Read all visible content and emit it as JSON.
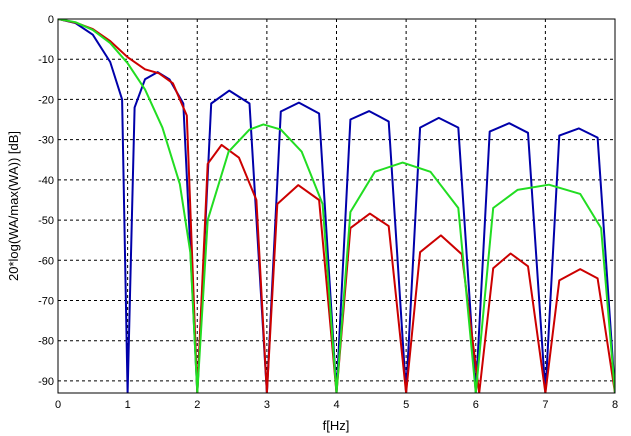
{
  "chart_data": {
    "type": "line",
    "title": "",
    "xlabel": "f[Hz]",
    "ylabel": "20*log(WA/max(WA)) [dB]",
    "xlim": [
      0,
      8
    ],
    "ylim": [
      -93,
      0
    ],
    "xticks": [
      0,
      1,
      2,
      3,
      4,
      5,
      6,
      7,
      8
    ],
    "xtick_labels": [
      "0",
      "1",
      "2",
      "3",
      "4",
      "5",
      "6",
      "7",
      "8"
    ],
    "yticks": [
      0,
      -10,
      -20,
      -30,
      -40,
      -50,
      -60,
      -70,
      -80,
      -90
    ],
    "ytick_labels": [
      "0",
      "-10",
      "-20",
      "-30",
      "-40",
      "-50",
      "-60",
      "-70",
      "-80",
      "-90"
    ],
    "grid": true,
    "grid_style": "dashed",
    "series": [
      {
        "color": "#0000aa",
        "nulls": [
          1,
          2,
          3,
          4,
          5,
          6,
          7,
          8
        ],
        "points": [
          [
            0,
            0
          ],
          [
            0.25,
            -1
          ],
          [
            0.5,
            -3.9
          ],
          [
            0.75,
            -10.7
          ],
          [
            0.92,
            -20
          ],
          [
            1.0,
            -93
          ],
          [
            1.1,
            -22
          ],
          [
            1.25,
            -15
          ],
          [
            1.43,
            -13.2
          ],
          [
            1.6,
            -15
          ],
          [
            1.8,
            -21
          ],
          [
            2.0,
            -93
          ],
          [
            2.2,
            -21
          ],
          [
            2.46,
            -17.8
          ],
          [
            2.75,
            -21
          ],
          [
            3.0,
            -93
          ],
          [
            3.2,
            -23
          ],
          [
            3.46,
            -20.8
          ],
          [
            3.75,
            -23.5
          ],
          [
            4.0,
            -93
          ],
          [
            4.2,
            -25
          ],
          [
            4.47,
            -22.9
          ],
          [
            4.75,
            -25.5
          ],
          [
            5.0,
            -93
          ],
          [
            5.2,
            -27
          ],
          [
            5.47,
            -24.6
          ],
          [
            5.75,
            -27
          ],
          [
            6.0,
            -93
          ],
          [
            6.2,
            -28
          ],
          [
            6.48,
            -25.9
          ],
          [
            6.75,
            -28.3
          ],
          [
            7.0,
            -93
          ],
          [
            7.2,
            -29
          ],
          [
            7.48,
            -27.2
          ],
          [
            7.75,
            -29.5
          ],
          [
            8.0,
            -93
          ]
        ]
      },
      {
        "color": "#cc0000",
        "nulls": [
          2,
          3,
          4,
          5,
          6.05,
          7,
          8
        ],
        "points": [
          [
            0,
            0
          ],
          [
            0.25,
            -0.9
          ],
          [
            0.5,
            -2.5
          ],
          [
            0.75,
            -5.5
          ],
          [
            1.0,
            -9.5
          ],
          [
            1.25,
            -12.5
          ],
          [
            1.45,
            -13.5
          ],
          [
            1.65,
            -16
          ],
          [
            1.85,
            -24
          ],
          [
            2.0,
            -93
          ],
          [
            2.15,
            -36
          ],
          [
            2.35,
            -31.3
          ],
          [
            2.6,
            -34.5
          ],
          [
            2.85,
            -45
          ],
          [
            3.0,
            -93
          ],
          [
            3.15,
            -46
          ],
          [
            3.45,
            -41.3
          ],
          [
            3.75,
            -45
          ],
          [
            4.0,
            -93
          ],
          [
            4.2,
            -52
          ],
          [
            4.48,
            -48.4
          ],
          [
            4.75,
            -51.5
          ],
          [
            5.0,
            -93
          ],
          [
            5.2,
            -58
          ],
          [
            5.5,
            -53.8
          ],
          [
            5.8,
            -58.5
          ],
          [
            6.05,
            -93
          ],
          [
            6.25,
            -62
          ],
          [
            6.5,
            -58.3
          ],
          [
            6.75,
            -61.5
          ],
          [
            7.0,
            -93
          ],
          [
            7.2,
            -65
          ],
          [
            7.5,
            -62.2
          ],
          [
            7.75,
            -64.5
          ],
          [
            8.0,
            -93
          ]
        ]
      },
      {
        "color": "#22dd22",
        "nulls": [
          2,
          4,
          6,
          8
        ],
        "points": [
          [
            0,
            0
          ],
          [
            0.25,
            -0.8
          ],
          [
            0.5,
            -2.7
          ],
          [
            0.75,
            -6
          ],
          [
            1.0,
            -11
          ],
          [
            1.25,
            -17.5
          ],
          [
            1.5,
            -27
          ],
          [
            1.75,
            -41
          ],
          [
            1.9,
            -58
          ],
          [
            2.0,
            -93
          ],
          [
            2.15,
            -50
          ],
          [
            2.45,
            -33
          ],
          [
            2.75,
            -27.5
          ],
          [
            2.95,
            -26.2
          ],
          [
            3.2,
            -27.5
          ],
          [
            3.5,
            -33
          ],
          [
            3.8,
            -46
          ],
          [
            4.0,
            -93
          ],
          [
            4.2,
            -48
          ],
          [
            4.55,
            -38
          ],
          [
            4.95,
            -35.7
          ],
          [
            5.35,
            -38
          ],
          [
            5.75,
            -47
          ],
          [
            6.0,
            -93
          ],
          [
            6.25,
            -47
          ],
          [
            6.6,
            -42.5
          ],
          [
            7.05,
            -41.2
          ],
          [
            7.5,
            -43.5
          ],
          [
            7.8,
            -52
          ],
          [
            8.0,
            -93
          ]
        ]
      }
    ]
  }
}
